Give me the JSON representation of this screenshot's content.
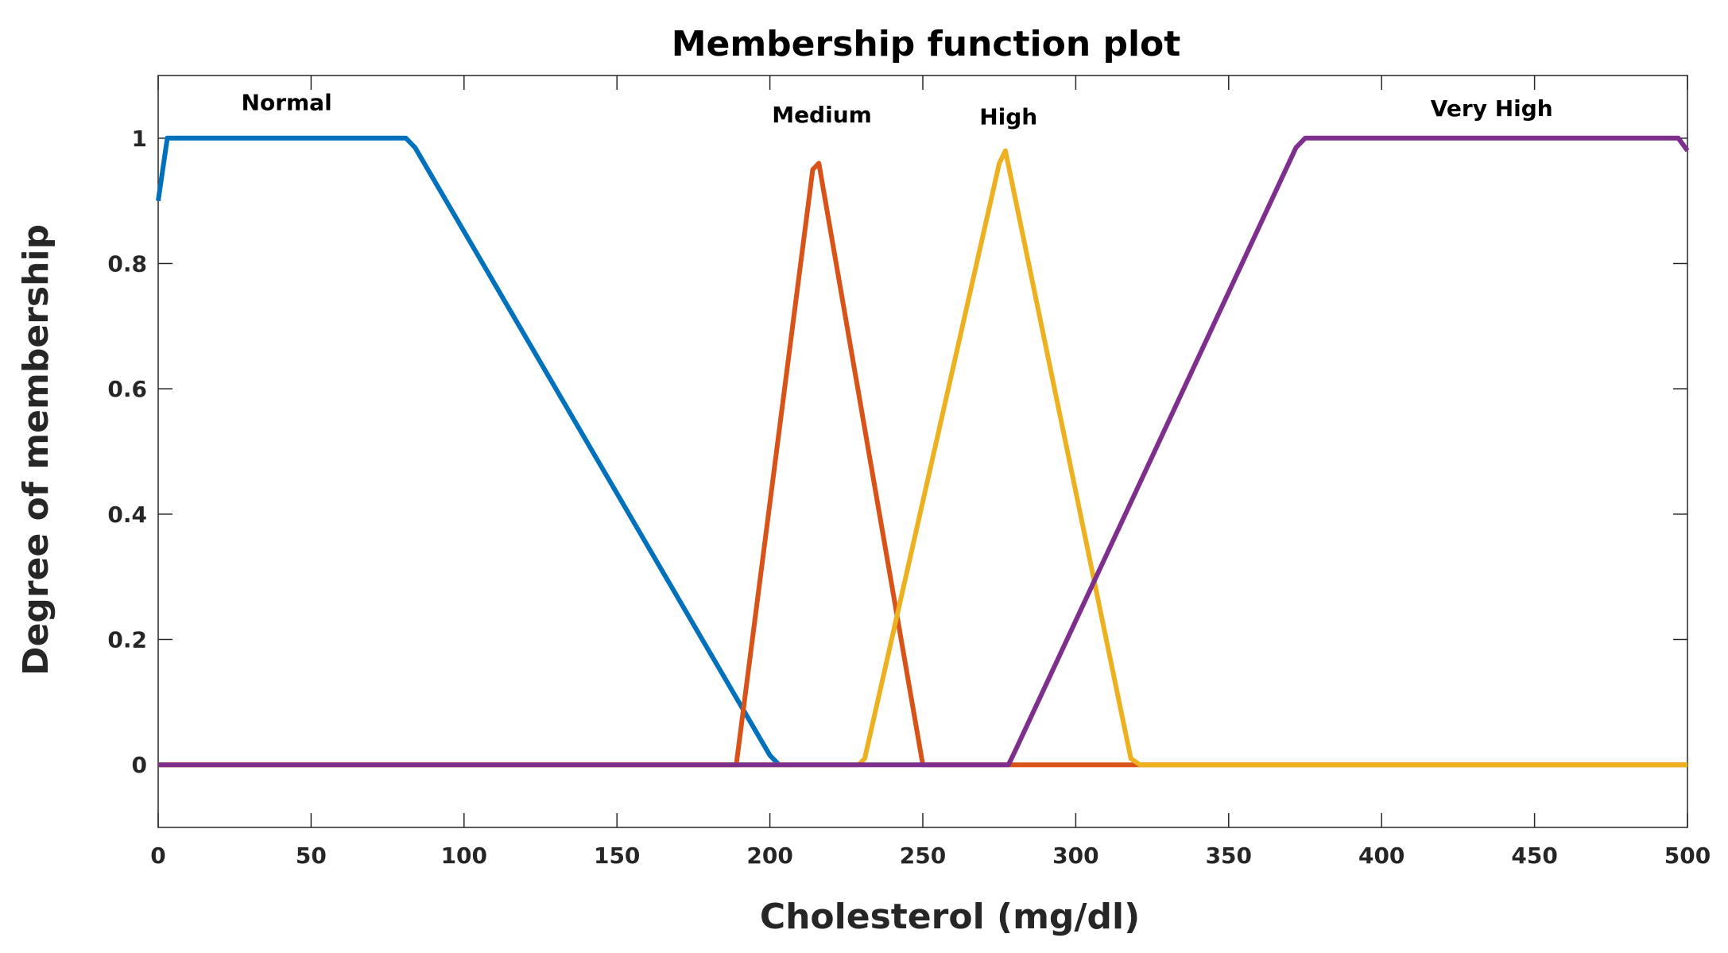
{
  "chart_data": {
    "type": "line",
    "title": "Membership function plot",
    "xlabel": "Cholesterol (mg/dl)",
    "ylabel": "Degree of membership",
    "xlim": [
      0,
      500
    ],
    "ylim": [
      -0.1,
      1.1
    ],
    "grid": false,
    "x_ticks": [
      0,
      50,
      100,
      150,
      200,
      250,
      300,
      350,
      400,
      450,
      500
    ],
    "y_ticks": [
      0,
      0.2,
      0.4,
      0.6,
      0.8,
      1
    ],
    "x_tick_labels": [
      "0",
      "50",
      "100",
      "150",
      "200",
      "250",
      "300",
      "350",
      "400",
      "450",
      "500"
    ],
    "y_tick_labels": [
      "0",
      "0.2",
      "0.4",
      "0.6",
      "0.8",
      "1"
    ],
    "series": [
      {
        "name": "Normal",
        "color": "#0072BD",
        "points": [
          [
            0,
            0.9
          ],
          [
            3,
            1
          ],
          [
            81,
            1
          ],
          [
            84,
            0.985
          ],
          [
            200,
            0.015
          ],
          [
            203,
            0
          ]
        ]
      },
      {
        "name": "Medium",
        "color": "#D95319",
        "points": [
          [
            0,
            0
          ],
          [
            189,
            0
          ],
          [
            214,
            0.95
          ],
          [
            216,
            0.96
          ],
          [
            250,
            0
          ],
          [
            500,
            0
          ]
        ]
      },
      {
        "name": "High",
        "color": "#EDB120",
        "points": [
          [
            0,
            0
          ],
          [
            229,
            0
          ],
          [
            231,
            0.01
          ],
          [
            275,
            0.96
          ],
          [
            277,
            0.98
          ],
          [
            318,
            0.01
          ],
          [
            321,
            0
          ],
          [
            500,
            0
          ]
        ]
      },
      {
        "name": "Very High",
        "color": "#7E2F8E",
        "points": [
          [
            0,
            0
          ],
          [
            278,
            0
          ],
          [
            280,
            0.02
          ],
          [
            372,
            0.985
          ],
          [
            375,
            1
          ],
          [
            497,
            1
          ],
          [
            500,
            0.98
          ]
        ]
      }
    ],
    "annotations": [
      {
        "text": "Normal",
        "x": 42,
        "y": 1.045
      },
      {
        "text": "Medium",
        "x": 217,
        "y": 1.025
      },
      {
        "text": "High",
        "x": 278,
        "y": 1.022
      },
      {
        "text": "Very High",
        "x": 436,
        "y": 1.035
      }
    ]
  }
}
